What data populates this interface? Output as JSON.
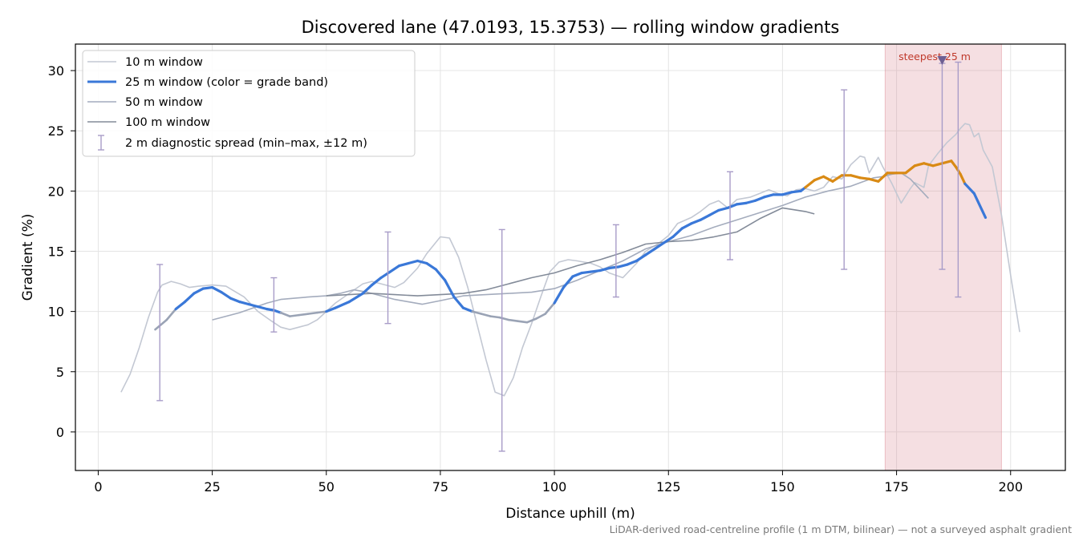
{
  "chart_data": {
    "type": "line",
    "title": "Discovered lane (47.0193, 15.3753) — rolling window gradients",
    "xlabel": "Distance uphill (m)",
    "ylabel": "Gradient (%)",
    "xlim": [
      -5,
      212
    ],
    "ylim": [
      -3.2,
      32.2
    ],
    "xticks": [
      0,
      25,
      50,
      75,
      100,
      125,
      150,
      175,
      200
    ],
    "yticks": [
      0,
      5,
      10,
      15,
      20,
      25,
      30
    ],
    "grid": true,
    "legend_position": "top-left",
    "caption": "LiDAR-derived road-centreline profile (1 m DTM, bilinear) — not a surveyed asphalt gradient",
    "steepest_band": {
      "x_start": 172.5,
      "x_end": 198,
      "label": "steepest 25 m",
      "marker_x": 185,
      "marker_y": 30.8,
      "color": "#d9808c"
    },
    "band_colors": {
      "moderate": "#3a78d8",
      "steep": "#d98a14",
      "transition": "#9aa3b5"
    },
    "series": [
      {
        "name": "10 m window",
        "color": "#c3c8d3",
        "x": [
          5,
          7,
          9,
          11,
          13,
          14,
          16,
          18,
          20,
          22,
          25,
          28,
          32,
          35,
          38,
          40,
          42,
          44,
          46,
          48,
          50,
          52,
          55,
          58,
          60,
          63,
          65,
          67,
          70,
          72,
          75,
          77,
          79,
          81,
          83,
          85,
          87,
          89,
          91,
          93,
          95,
          97,
          99,
          101,
          103,
          105,
          108,
          110,
          112,
          115,
          118,
          120,
          123,
          125,
          127,
          130,
          132,
          134,
          136,
          138,
          140,
          143,
          145,
          147,
          149,
          151,
          153,
          155,
          157,
          159,
          161,
          163,
          165,
          167,
          168,
          169,
          171,
          172,
          174,
          176,
          178,
          179,
          181,
          182,
          184,
          186,
          188,
          189,
          190,
          191,
          192,
          193,
          194,
          196,
          198,
          200,
          202
        ],
        "values": [
          3.3,
          4.8,
          7.0,
          9.5,
          11.6,
          12.2,
          12.5,
          12.3,
          12.0,
          12.1,
          12.2,
          12.1,
          11.2,
          10.0,
          9.2,
          8.7,
          8.5,
          8.7,
          8.9,
          9.3,
          10.0,
          10.7,
          11.5,
          12.3,
          12.5,
          12.2,
          12.0,
          12.4,
          13.6,
          14.8,
          16.2,
          16.1,
          14.5,
          12.0,
          9.0,
          6.0,
          3.3,
          3.0,
          4.5,
          7.0,
          9.0,
          11.2,
          13.3,
          14.1,
          14.3,
          14.2,
          14.0,
          13.7,
          13.2,
          12.8,
          14.0,
          15.0,
          15.7,
          16.3,
          17.3,
          17.8,
          18.3,
          18.9,
          19.2,
          18.6,
          19.3,
          19.5,
          19.8,
          20.1,
          19.8,
          19.6,
          20.1,
          20.2,
          20.0,
          20.3,
          21.2,
          21.0,
          22.2,
          22.9,
          22.8,
          21.5,
          22.8,
          22.0,
          20.6,
          19.0,
          20.2,
          20.7,
          20.3,
          22.1,
          23.1,
          24.0,
          24.7,
          25.2,
          25.6,
          25.5,
          24.5,
          24.8,
          23.4,
          22.0,
          18.0,
          13.0,
          8.3
        ]
      },
      {
        "name": "25 m window (color = grade band)",
        "color": "#3a78d8",
        "x": [
          12.5,
          15,
          17,
          19,
          21,
          23,
          25,
          27,
          29,
          31,
          33,
          35,
          37,
          38.5,
          40,
          42,
          44,
          46,
          48,
          50,
          52,
          55,
          58,
          60,
          62,
          64,
          66,
          68,
          70,
          72,
          74,
          76,
          78,
          80,
          82,
          84,
          86,
          88,
          90,
          92,
          94,
          96,
          98,
          100,
          102,
          104,
          106,
          108,
          110,
          112,
          114,
          116,
          118,
          120,
          122,
          124,
          126,
          128,
          130,
          132,
          134,
          136,
          138,
          140,
          142,
          144,
          146,
          148,
          150,
          152,
          154,
          155,
          157,
          159,
          161,
          163,
          165,
          167,
          169,
          171,
          173,
          175,
          177,
          179,
          181,
          183,
          185,
          187,
          188,
          189,
          190,
          192,
          194.5
        ],
        "grades": [
          "transition",
          "transition",
          "moderate",
          "moderate",
          "moderate",
          "moderate",
          "moderate",
          "moderate",
          "moderate",
          "moderate",
          "moderate",
          "moderate",
          "moderate",
          "moderate",
          "transition",
          "transition",
          "transition",
          "transition",
          "transition",
          "moderate",
          "moderate",
          "moderate",
          "moderate",
          "moderate",
          "moderate",
          "moderate",
          "moderate",
          "moderate",
          "moderate",
          "moderate",
          "moderate",
          "moderate",
          "moderate",
          "moderate",
          "transition",
          "transition",
          "transition",
          "transition",
          "transition",
          "transition",
          "transition",
          "transition",
          "transition",
          "moderate",
          "moderate",
          "moderate",
          "moderate",
          "moderate",
          "moderate",
          "moderate",
          "moderate",
          "moderate",
          "moderate",
          "moderate",
          "moderate",
          "moderate",
          "moderate",
          "moderate",
          "moderate",
          "moderate",
          "moderate",
          "moderate",
          "moderate",
          "moderate",
          "moderate",
          "moderate",
          "moderate",
          "moderate",
          "moderate",
          "moderate",
          "moderate",
          "steep",
          "steep",
          "steep",
          "steep",
          "steep",
          "steep",
          "steep",
          "steep",
          "steep",
          "steep",
          "steep",
          "steep",
          "steep",
          "steep",
          "steep",
          "steep",
          "steep",
          "steep",
          "steep",
          "moderate",
          "moderate",
          "moderate"
        ],
        "values": [
          8.5,
          9.3,
          10.2,
          10.8,
          11.5,
          11.9,
          12.0,
          11.6,
          11.1,
          10.8,
          10.6,
          10.4,
          10.2,
          10.1,
          9.9,
          9.6,
          9.7,
          9.8,
          9.9,
          10.0,
          10.3,
          10.8,
          11.5,
          12.2,
          12.8,
          13.3,
          13.8,
          14.0,
          14.2,
          14.0,
          13.5,
          12.6,
          11.2,
          10.3,
          10.0,
          9.8,
          9.6,
          9.5,
          9.3,
          9.2,
          9.1,
          9.4,
          9.8,
          10.7,
          12.0,
          12.9,
          13.2,
          13.3,
          13.4,
          13.6,
          13.7,
          13.9,
          14.2,
          14.7,
          15.2,
          15.7,
          16.2,
          16.9,
          17.3,
          17.6,
          18.0,
          18.4,
          18.6,
          18.9,
          19.0,
          19.2,
          19.5,
          19.7,
          19.7,
          19.9,
          20.0,
          20.3,
          20.9,
          21.2,
          20.8,
          21.3,
          21.3,
          21.1,
          21.0,
          20.8,
          21.5,
          21.5,
          21.5,
          22.1,
          22.3,
          22.1,
          22.3,
          22.5,
          22.0,
          21.4,
          20.6,
          19.8,
          17.8
        ]
      },
      {
        "name": "50 m window",
        "color": "#a4acbd",
        "x": [
          25,
          28,
          31,
          34,
          37,
          40,
          43,
          46,
          50,
          53,
          56,
          59,
          62,
          65,
          68,
          71,
          75,
          80,
          85,
          90,
          95,
          100,
          105,
          110,
          115,
          120,
          125,
          130,
          135,
          140,
          145,
          150,
          155,
          160,
          165,
          170,
          172,
          174,
          176,
          178,
          180,
          182
        ],
        "values": [
          9.3,
          9.6,
          9.9,
          10.3,
          10.7,
          11.0,
          11.1,
          11.2,
          11.3,
          11.5,
          11.8,
          11.6,
          11.3,
          11.0,
          10.8,
          10.6,
          10.9,
          11.3,
          11.4,
          11.5,
          11.6,
          11.9,
          12.6,
          13.4,
          14.2,
          15.2,
          15.8,
          16.3,
          17.0,
          17.6,
          18.2,
          18.8,
          19.5,
          20.0,
          20.4,
          21.1,
          21.2,
          21.4,
          21.5,
          21.0,
          20.2,
          19.4
        ]
      },
      {
        "name": "100 m window",
        "color": "#838b99",
        "x": [
          50,
          55,
          60,
          65,
          70,
          75,
          80,
          85,
          90,
          95,
          100,
          105,
          110,
          115,
          120,
          125,
          130,
          135,
          140,
          145,
          150,
          155,
          157
        ],
        "values": [
          11.3,
          11.4,
          11.5,
          11.4,
          11.3,
          11.4,
          11.5,
          11.8,
          12.3,
          12.8,
          13.2,
          13.8,
          14.3,
          14.9,
          15.6,
          15.8,
          15.9,
          16.2,
          16.6,
          17.7,
          18.6,
          18.3,
          18.1
        ]
      }
    ],
    "error_bars": {
      "name": "2 m diagnostic spread (min–max, ±12 m)",
      "color": "#a89cc8",
      "x": [
        13.5,
        38.5,
        63.5,
        88.5,
        113.5,
        138.5,
        163.5,
        185,
        188.5
      ],
      "low": [
        2.6,
        8.3,
        9.0,
        -1.6,
        11.2,
        14.3,
        13.5,
        13.5,
        11.2
      ],
      "high": [
        13.9,
        12.8,
        16.6,
        16.8,
        17.2,
        21.6,
        28.4,
        30.6,
        30.7
      ]
    }
  }
}
